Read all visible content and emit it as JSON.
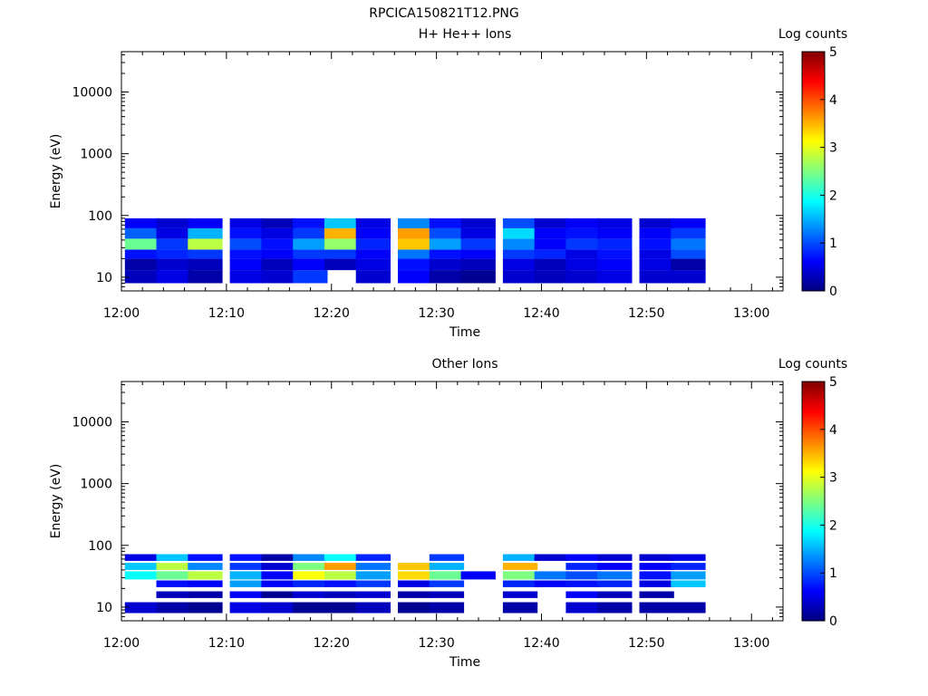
{
  "figure": {
    "title": "RPCICA150821T12.PNG",
    "colors": {
      "colormap": [
        "#00007f",
        "#0000ff",
        "#007fff",
        "#00ffff",
        "#7fff7f",
        "#ffff00",
        "#ff7f00",
        "#ff0000",
        "#7f0000"
      ],
      "axes": "#000000",
      "background": "#ffffff"
    }
  },
  "chart_data": [
    {
      "type": "heatmap",
      "title": "H+ He++ Ions",
      "xlabel": "Time",
      "ylabel": "Energy (eV)",
      "x_tick_labels": [
        "12:00",
        "12:10",
        "12:20",
        "12:30",
        "12:40",
        "12:50",
        "13:00"
      ],
      "y_tick_labels": [
        "10",
        "100",
        "1000",
        "10000"
      ],
      "y_scale": "log",
      "ylim": [
        6,
        45000
      ],
      "xlim": [
        "12:00",
        "13:03"
      ],
      "colorbar": {
        "label": "Log counts",
        "ticks": [
          "0",
          "1",
          "2",
          "3",
          "4",
          "5"
        ],
        "range": [
          0,
          5
        ]
      },
      "time_columns": [
        "12:02",
        "12:05",
        "12:08",
        "12:12",
        "12:15",
        "12:18",
        "12:21",
        "12:24",
        "12:28",
        "12:31",
        "12:34",
        "12:38",
        "12:41",
        "12:44",
        "12:47",
        "12:51",
        "12:54"
      ],
      "energy_bands": [
        {
          "e_min": 8,
          "e_max": 13,
          "log_counts": [
            0.3,
            0.5,
            0.2,
            0.5,
            0.4,
            0.9,
            null,
            0.4,
            0.6,
            0.2,
            0.1,
            0.4,
            0.3,
            0.4,
            0.5,
            0.4,
            0.4
          ]
        },
        {
          "e_min": 13,
          "e_max": 20,
          "log_counts": [
            0.2,
            0.4,
            0.3,
            0.6,
            0.3,
            0.6,
            0.3,
            0.5,
            0.7,
            0.4,
            0.3,
            0.5,
            0.3,
            0.5,
            0.6,
            0.5,
            0.2
          ]
        },
        {
          "e_min": 20,
          "e_max": 28,
          "log_counts": [
            0.7,
            0.8,
            0.9,
            0.7,
            0.6,
            0.9,
            0.9,
            0.6,
            1.2,
            0.7,
            0.6,
            0.9,
            0.8,
            0.5,
            0.7,
            0.5,
            1.0
          ]
        },
        {
          "e_min": 28,
          "e_max": 42,
          "log_counts": [
            2.4,
            0.9,
            2.8,
            1.0,
            0.7,
            1.4,
            2.6,
            0.8,
            3.4,
            1.4,
            0.9,
            1.3,
            0.6,
            0.9,
            0.8,
            0.7,
            1.2
          ]
        },
        {
          "e_min": 42,
          "e_max": 62,
          "log_counts": [
            1.1,
            0.5,
            1.5,
            0.7,
            0.5,
            0.9,
            3.5,
            0.6,
            3.6,
            1.0,
            0.5,
            1.7,
            0.6,
            0.7,
            0.6,
            0.6,
            0.9
          ]
        },
        {
          "e_min": 62,
          "e_max": 90,
          "log_counts": [
            0.6,
            0.4,
            0.6,
            0.5,
            0.3,
            0.7,
            1.6,
            0.5,
            1.3,
            0.7,
            0.4,
            1.0,
            0.4,
            0.6,
            0.5,
            0.4,
            0.6
          ]
        }
      ]
    },
    {
      "type": "heatmap",
      "title": "Other Ions",
      "xlabel": "Time",
      "ylabel": "Energy (eV)",
      "x_tick_labels": [
        "12:00",
        "12:10",
        "12:20",
        "12:30",
        "12:40",
        "12:50",
        "13:00"
      ],
      "y_tick_labels": [
        "10",
        "100",
        "1000",
        "10000"
      ],
      "y_scale": "log",
      "ylim": [
        6,
        45000
      ],
      "xlim": [
        "12:00",
        "13:03"
      ],
      "colorbar": {
        "label": "Log counts",
        "ticks": [
          "0",
          "1",
          "2",
          "3",
          "4",
          "5"
        ],
        "range": [
          0,
          5
        ]
      },
      "time_columns": [
        "12:02",
        "12:05",
        "12:08",
        "12:12",
        "12:15",
        "12:18",
        "12:21",
        "12:24",
        "12:28",
        "12:31",
        "12:34",
        "12:38",
        "12:41",
        "12:44",
        "12:47",
        "12:51",
        "12:54"
      ],
      "energy_bands": [
        {
          "e_min": 8,
          "e_max": 12,
          "log_counts": [
            0.4,
            0.2,
            0.1,
            0.5,
            0.4,
            0.1,
            0.1,
            0.3,
            0.1,
            0.2,
            null,
            0.2,
            null,
            0.4,
            0.2,
            0.2,
            0.2
          ]
        },
        {
          "e_min": 14,
          "e_max": 18,
          "log_counts": [
            null,
            0.3,
            0.2,
            0.6,
            0.1,
            0.4,
            0.3,
            0.4,
            0.2,
            0.3,
            null,
            0.4,
            null,
            0.6,
            0.3,
            0.2,
            null
          ]
        },
        {
          "e_min": 21,
          "e_max": 27,
          "log_counts": [
            null,
            0.7,
            0.6,
            1.4,
            0.6,
            0.8,
            0.7,
            0.9,
            0.5,
            0.9,
            null,
            0.8,
            0.6,
            0.7,
            0.8,
            0.5,
            1.6
          ]
        },
        {
          "e_min": 28,
          "e_max": 38,
          "log_counts": [
            1.9,
            2.4,
            2.8,
            1.5,
            0.6,
            3.1,
            2.8,
            1.4,
            3.3,
            2.4,
            0.6,
            2.5,
            1.2,
            1.0,
            1.2,
            0.7,
            1.4
          ]
        },
        {
          "e_min": 40,
          "e_max": 52,
          "log_counts": [
            1.6,
            2.8,
            1.3,
            0.9,
            0.4,
            2.5,
            3.6,
            1.2,
            3.4,
            1.5,
            null,
            3.5,
            null,
            0.8,
            0.6,
            0.6,
            0.8
          ]
        },
        {
          "e_min": 56,
          "e_max": 72,
          "log_counts": [
            0.5,
            1.6,
            0.7,
            0.7,
            0.2,
            1.3,
            1.9,
            0.8,
            null,
            0.9,
            null,
            1.5,
            0.4,
            0.6,
            0.4,
            0.4,
            0.5
          ]
        }
      ]
    }
  ]
}
